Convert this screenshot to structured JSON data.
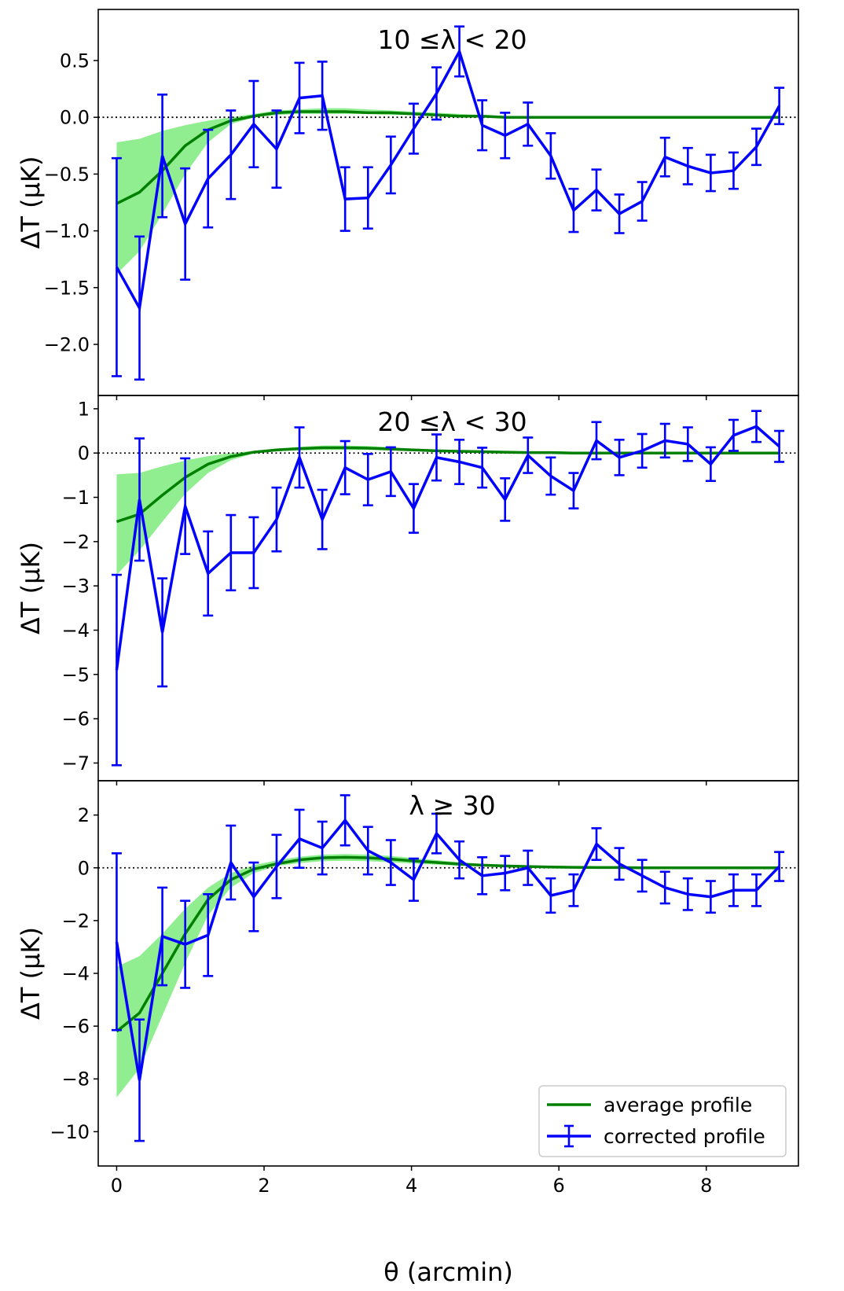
{
  "figure": {
    "xlabel": "θ (arcmin)",
    "legend": {
      "placement": "lower-right",
      "entries": [
        "average profile",
        "corrected profile"
      ]
    }
  },
  "colors": {
    "average_line": "#008000",
    "average_band": "#90ee90",
    "corrected": "#0000ff",
    "zero_line": "#000000"
  },
  "chart_data": [
    {
      "type": "line",
      "title": "10 ≤λ < 20",
      "ylabel": "ΔT (μK)",
      "xlim": [
        -0.25,
        9.25
      ],
      "ylim": [
        -2.45,
        0.95
      ],
      "xticks": [
        0,
        2,
        4,
        6,
        8
      ],
      "xticks_labeled": false,
      "yticks": [
        0.5,
        0.0,
        -0.5,
        -1.0,
        -1.5,
        -2.0
      ],
      "ytick_labels": [
        "0.5",
        "0.0",
        "−0.5",
        "−1.0",
        "−1.5",
        "−2.0"
      ],
      "zero_line": true,
      "average_profile": {
        "name": "average profile",
        "x": [
          0,
          0.31,
          0.62,
          0.93,
          1.24,
          1.55,
          1.86,
          2.17,
          2.48,
          2.79,
          3.1,
          3.41,
          3.72,
          4.03,
          4.34,
          4.65,
          4.96,
          5.27,
          5.58,
          5.89,
          6.2,
          6.51,
          6.82,
          7.13,
          7.44,
          7.75,
          8.06,
          8.37,
          8.68,
          8.99
        ],
        "y": [
          -0.76,
          -0.66,
          -0.47,
          -0.25,
          -0.11,
          -0.03,
          0.01,
          0.04,
          0.05,
          0.05,
          0.05,
          0.04,
          0.04,
          0.03,
          0.02,
          0.01,
          0.01,
          0.0,
          0.0,
          0.0,
          0.0,
          0.0,
          0.0,
          0.0,
          0.0,
          0.0,
          0.0,
          0.0,
          0.0,
          0.0
        ],
        "band_low": [
          -1.38,
          -1.18,
          -0.85,
          -0.5,
          -0.22,
          -0.06,
          0.0,
          0.02,
          0.03,
          0.03,
          0.03,
          0.03,
          0.02,
          0.02,
          0.01,
          0.0,
          0.0,
          0.0,
          0.0,
          0.0,
          0.0,
          0.0,
          0.0,
          0.0,
          0.0,
          0.0,
          0.0,
          0.0,
          0.0,
          0.0
        ],
        "band_high": [
          -0.22,
          -0.19,
          -0.12,
          -0.07,
          -0.03,
          0.0,
          0.03,
          0.06,
          0.07,
          0.08,
          0.08,
          0.07,
          0.06,
          0.05,
          0.04,
          0.03,
          0.02,
          0.01,
          0.01,
          0.01,
          0.0,
          0.0,
          0.0,
          0.0,
          0.0,
          0.0,
          0.0,
          0.0,
          0.0,
          0.0
        ]
      },
      "corrected_profile": {
        "name": "corrected profile",
        "x": [
          0,
          0.31,
          0.62,
          0.93,
          1.24,
          1.55,
          1.86,
          2.17,
          2.48,
          2.79,
          3.1,
          3.41,
          3.72,
          4.03,
          4.34,
          4.65,
          4.96,
          5.27,
          5.58,
          5.89,
          6.2,
          6.51,
          6.82,
          7.13,
          7.44,
          7.75,
          8.06,
          8.37,
          8.68,
          8.99
        ],
        "y": [
          -1.32,
          -1.68,
          -0.34,
          -0.94,
          -0.54,
          -0.33,
          -0.06,
          -0.28,
          0.17,
          0.19,
          -0.72,
          -0.71,
          -0.42,
          -0.1,
          0.21,
          0.58,
          -0.07,
          -0.16,
          -0.06,
          -0.34,
          -0.82,
          -0.64,
          -0.85,
          -0.74,
          -0.35,
          -0.43,
          -0.49,
          -0.47,
          -0.26,
          0.1
        ],
        "err": [
          0.96,
          0.63,
          0.54,
          0.49,
          0.43,
          0.39,
          0.38,
          0.34,
          0.31,
          0.3,
          0.28,
          0.27,
          0.25,
          0.22,
          0.23,
          0.22,
          0.22,
          0.2,
          0.19,
          0.2,
          0.19,
          0.18,
          0.17,
          0.17,
          0.17,
          0.16,
          0.16,
          0.16,
          0.16,
          0.16
        ]
      }
    },
    {
      "type": "line",
      "title": "20 ≤λ < 30",
      "ylabel": "ΔT (μK)",
      "xlim": [
        -0.25,
        9.25
      ],
      "ylim": [
        -7.4,
        1.3
      ],
      "xticks": [
        0,
        2,
        4,
        6,
        8
      ],
      "xticks_labeled": false,
      "yticks": [
        1,
        0,
        -1,
        -2,
        -3,
        -4,
        -5,
        -6,
        -7
      ],
      "ytick_labels": [
        "1",
        "0",
        "−1",
        "−2",
        "−3",
        "−4",
        "−5",
        "−6",
        "−7"
      ],
      "zero_line": true,
      "average_profile": {
        "name": "average profile",
        "x": [
          0,
          0.31,
          0.62,
          0.93,
          1.24,
          1.55,
          1.86,
          2.17,
          2.48,
          2.79,
          3.1,
          3.41,
          3.72,
          4.03,
          4.34,
          4.65,
          4.96,
          5.27,
          5.58,
          5.89,
          6.2,
          6.51,
          6.82,
          7.13,
          7.44,
          7.75,
          8.06,
          8.37,
          8.68,
          8.99
        ],
        "y": [
          -1.55,
          -1.38,
          -0.95,
          -0.55,
          -0.25,
          -0.08,
          0.02,
          0.07,
          0.1,
          0.12,
          0.12,
          0.11,
          0.09,
          0.07,
          0.05,
          0.04,
          0.03,
          0.02,
          0.01,
          0.01,
          0.0,
          0.0,
          0.0,
          0.0,
          0.0,
          0.0,
          0.0,
          0.0,
          0.0,
          0.0
        ],
        "band_low": [
          -2.75,
          -2.2,
          -1.55,
          -0.92,
          -0.45,
          -0.16,
          -0.01,
          0.04,
          0.06,
          0.07,
          0.07,
          0.07,
          0.06,
          0.05,
          0.03,
          0.02,
          0.01,
          0.01,
          0.0,
          0.0,
          0.0,
          0.0,
          0.0,
          0.0,
          0.0,
          0.0,
          0.0,
          0.0,
          0.0,
          0.0
        ],
        "band_high": [
          -0.48,
          -0.45,
          -0.3,
          -0.17,
          -0.07,
          0.0,
          0.05,
          0.1,
          0.14,
          0.17,
          0.17,
          0.16,
          0.13,
          0.1,
          0.08,
          0.06,
          0.05,
          0.03,
          0.02,
          0.02,
          0.01,
          0.01,
          0.0,
          0.0,
          0.0,
          0.0,
          0.0,
          0.0,
          0.0,
          0.0
        ]
      },
      "corrected_profile": {
        "name": "corrected profile",
        "x": [
          0,
          0.31,
          0.62,
          0.93,
          1.24,
          1.55,
          1.86,
          2.17,
          2.48,
          2.79,
          3.1,
          3.41,
          3.72,
          4.03,
          4.34,
          4.65,
          4.96,
          5.27,
          5.58,
          5.89,
          6.2,
          6.51,
          6.82,
          7.13,
          7.44,
          7.75,
          8.06,
          8.37,
          8.68,
          8.99
        ],
        "y": [
          -4.9,
          -1.05,
          -4.05,
          -1.2,
          -2.72,
          -2.25,
          -2.25,
          -1.5,
          -0.1,
          -1.5,
          -0.33,
          -0.6,
          -0.42,
          -1.25,
          -0.1,
          -0.2,
          -0.33,
          -1.05,
          -0.05,
          -0.52,
          -0.85,
          0.28,
          -0.1,
          0.05,
          0.28,
          0.2,
          -0.25,
          0.4,
          0.6,
          0.15
        ],
        "err": [
          2.15,
          1.38,
          1.22,
          1.08,
          0.95,
          0.85,
          0.8,
          0.72,
          0.68,
          0.67,
          0.6,
          0.58,
          0.55,
          0.55,
          0.52,
          0.5,
          0.45,
          0.48,
          0.4,
          0.42,
          0.4,
          0.42,
          0.4,
          0.38,
          0.38,
          0.38,
          0.38,
          0.35,
          0.35,
          0.35
        ]
      }
    },
    {
      "type": "line",
      "title": "λ ≥ 30",
      "ylabel": "ΔT (μK)",
      "xlim": [
        -0.25,
        9.25
      ],
      "ylim": [
        -11.3,
        3.3
      ],
      "xticks": [
        0,
        2,
        4,
        6,
        8
      ],
      "xticks_labeled": true,
      "xtick_labels": [
        "0",
        "2",
        "4",
        "6",
        "8"
      ],
      "yticks": [
        2,
        0,
        -2,
        -4,
        -6,
        -8,
        -10
      ],
      "ytick_labels": [
        "2",
        "0",
        "−2",
        "−4",
        "−6",
        "−8",
        "−10"
      ],
      "zero_line": true,
      "average_profile": {
        "name": "average profile",
        "x": [
          0,
          0.31,
          0.62,
          0.93,
          1.24,
          1.55,
          1.86,
          2.17,
          2.48,
          2.79,
          3.1,
          3.41,
          3.72,
          4.03,
          4.34,
          4.65,
          4.96,
          5.27,
          5.58,
          5.89,
          6.2,
          6.51,
          6.82,
          7.13,
          7.44,
          7.75,
          8.06,
          8.37,
          8.68,
          8.99
        ],
        "y": [
          -6.2,
          -5.5,
          -4.0,
          -2.5,
          -1.2,
          -0.45,
          -0.05,
          0.15,
          0.3,
          0.38,
          0.4,
          0.38,
          0.33,
          0.26,
          0.2,
          0.14,
          0.1,
          0.07,
          0.05,
          0.03,
          0.02,
          0.01,
          0.01,
          0.0,
          0.0,
          0.0,
          0.0,
          0.0,
          0.0,
          0.0
        ],
        "band_low": [
          -8.7,
          -7.6,
          -5.6,
          -3.6,
          -1.8,
          -0.75,
          -0.2,
          0.07,
          0.18,
          0.25,
          0.27,
          0.25,
          0.21,
          0.16,
          0.12,
          0.08,
          0.05,
          0.03,
          0.02,
          0.01,
          0.0,
          0.0,
          0.0,
          0.0,
          0.0,
          0.0,
          0.0,
          0.0,
          0.0,
          0.0
        ],
        "band_high": [
          -3.75,
          -3.35,
          -2.5,
          -1.55,
          -0.75,
          -0.2,
          0.1,
          0.28,
          0.42,
          0.5,
          0.52,
          0.5,
          0.45,
          0.37,
          0.29,
          0.21,
          0.15,
          0.1,
          0.07,
          0.05,
          0.03,
          0.02,
          0.01,
          0.01,
          0.0,
          0.0,
          0.0,
          0.0,
          0.0,
          0.0
        ]
      },
      "corrected_profile": {
        "name": "corrected profile",
        "x": [
          0,
          0.31,
          0.62,
          0.93,
          1.24,
          1.55,
          1.86,
          2.17,
          2.48,
          2.79,
          3.1,
          3.41,
          3.72,
          4.03,
          4.34,
          4.65,
          4.96,
          5.27,
          5.58,
          5.89,
          6.2,
          6.51,
          6.82,
          7.13,
          7.44,
          7.75,
          8.06,
          8.37,
          8.68,
          8.99
        ],
        "y": [
          -2.8,
          -8.05,
          -2.6,
          -2.9,
          -2.55,
          0.2,
          -1.1,
          0.05,
          1.1,
          0.75,
          1.8,
          0.65,
          0.2,
          -0.45,
          1.3,
          0.3,
          -0.3,
          -0.2,
          0.0,
          -1.05,
          -0.85,
          0.9,
          0.15,
          -0.3,
          -0.75,
          -1.0,
          -1.1,
          -0.85,
          -0.85,
          0.05
        ],
        "err": [
          3.35,
          2.3,
          1.85,
          1.65,
          1.55,
          1.4,
          1.3,
          1.2,
          1.1,
          1.0,
          0.95,
          0.9,
          0.85,
          0.8,
          0.75,
          0.7,
          0.7,
          0.65,
          0.65,
          0.65,
          0.6,
          0.6,
          0.6,
          0.6,
          0.6,
          0.6,
          0.6,
          0.6,
          0.6,
          0.55
        ]
      }
    }
  ]
}
